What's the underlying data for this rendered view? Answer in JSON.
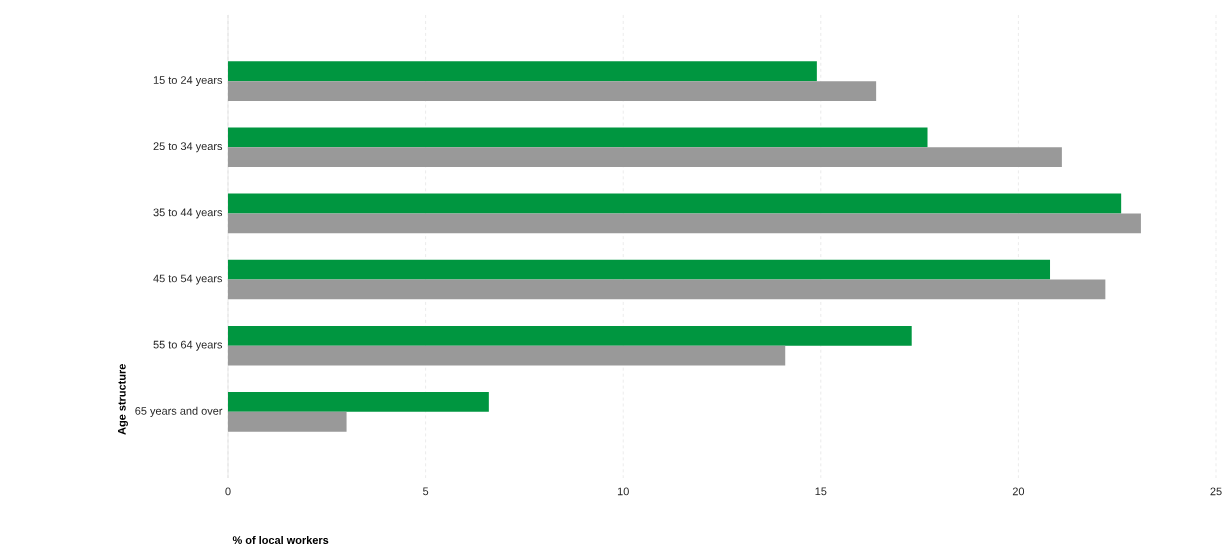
{
  "chart_data": {
    "type": "bar",
    "orientation": "horizontal",
    "xlabel": "% of local workers",
    "ylabel": "Age structure",
    "categories": [
      "15 to 24 years",
      "25 to 34 years",
      "35 to 44 years",
      "45 to 54 years",
      "55 to 64 years",
      "65 years and over"
    ],
    "series": [
      {
        "color": "#009640",
        "values": [
          14.9,
          17.7,
          22.6,
          20.8,
          17.3,
          6.6
        ]
      },
      {
        "color": "#999999",
        "values": [
          16.4,
          21.1,
          23.1,
          22.2,
          14.1,
          3.0
        ]
      }
    ],
    "xlim": [
      0,
      25
    ],
    "xticks": [
      0,
      5,
      10,
      15,
      20,
      25
    ],
    "grid": "x"
  }
}
